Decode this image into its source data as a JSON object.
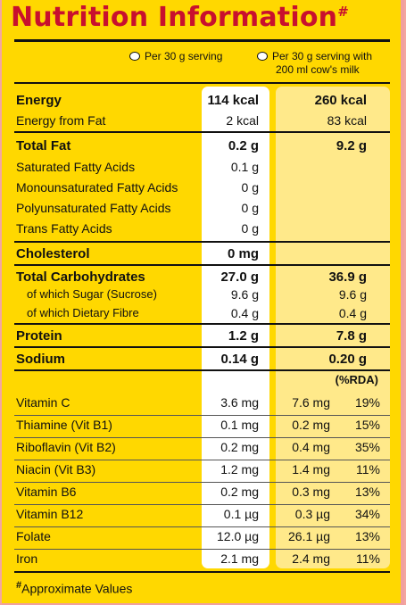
{
  "title": "Nutrition Information",
  "title_mark": "#",
  "columns": {
    "col1": "Per 30 g serving",
    "col2_line1": "Per 30 g serving with",
    "col2_line2": "200 ml cow's milk"
  },
  "nutrients": [
    {
      "label": "Energy",
      "v1": "114 kcal",
      "v2": "260 kcal"
    },
    {
      "label": "Energy from Fat",
      "v1": "2 kcal",
      "v2": "83 kcal"
    },
    {
      "label": "Total Fat",
      "v1": "0.2 g",
      "v2": "9.2 g"
    },
    {
      "label": "Saturated Fatty Acids",
      "v1": "0.1 g",
      "v2": ""
    },
    {
      "label": "Monounsaturated Fatty Acids",
      "v1": "0 g",
      "v2": ""
    },
    {
      "label": "Polyunsaturated Fatty Acids",
      "v1": "0 g",
      "v2": ""
    },
    {
      "label": "Trans Fatty Acids",
      "v1": "0 g",
      "v2": ""
    },
    {
      "label": "Cholesterol",
      "v1": "0 mg",
      "v2": ""
    },
    {
      "label": "Total Carbohydrates",
      "v1": "27.0 g",
      "v2": "36.9 g"
    },
    {
      "label": "of which Sugar (Sucrose)",
      "v1": "9.6 g",
      "v2": "9.6 g"
    },
    {
      "label": "of which Dietary Fibre",
      "v1": "0.4 g",
      "v2": "0.4 g"
    },
    {
      "label": "Protein",
      "v1": "1.2 g",
      "v2": "7.8 g"
    },
    {
      "label": "Sodium",
      "v1": "0.14 g",
      "v2": "0.20 g"
    }
  ],
  "rda_header": "(%RDA)",
  "vitamins": [
    {
      "label": "Vitamin C",
      "v1": "3.6 mg",
      "v2": "7.6 mg",
      "pct": "19%"
    },
    {
      "label": "Thiamine (Vit B1)",
      "v1": "0.1 mg",
      "v2": "0.2 mg",
      "pct": "15%"
    },
    {
      "label": "Riboflavin (Vit B2)",
      "v1": "0.2 mg",
      "v2": "0.4 mg",
      "pct": "35%"
    },
    {
      "label": "Niacin (Vit B3)",
      "v1": "1.2 mg",
      "v2": "1.4 mg",
      "pct": "11%"
    },
    {
      "label": "Vitamin B6",
      "v1": "0.2 mg",
      "v2": "0.3 mg",
      "pct": "13%"
    },
    {
      "label": "Vitamin B12",
      "v1": "0.1 µg",
      "v2": "0.3 µg",
      "pct": "34%"
    },
    {
      "label": "Folate",
      "v1": "12.0 µg",
      "v2": "26.1 µg",
      "pct": "13%"
    },
    {
      "label": "Iron",
      "v1": "2.1 mg",
      "v2": "2.4 mg",
      "pct": "11%"
    }
  ],
  "footnote_mark": "#",
  "footnote": "Approximate Values",
  "colors": {
    "title": "#c8102e",
    "background": "#ffd800",
    "col1": "#ffffff",
    "col2": "#ffe98a"
  }
}
